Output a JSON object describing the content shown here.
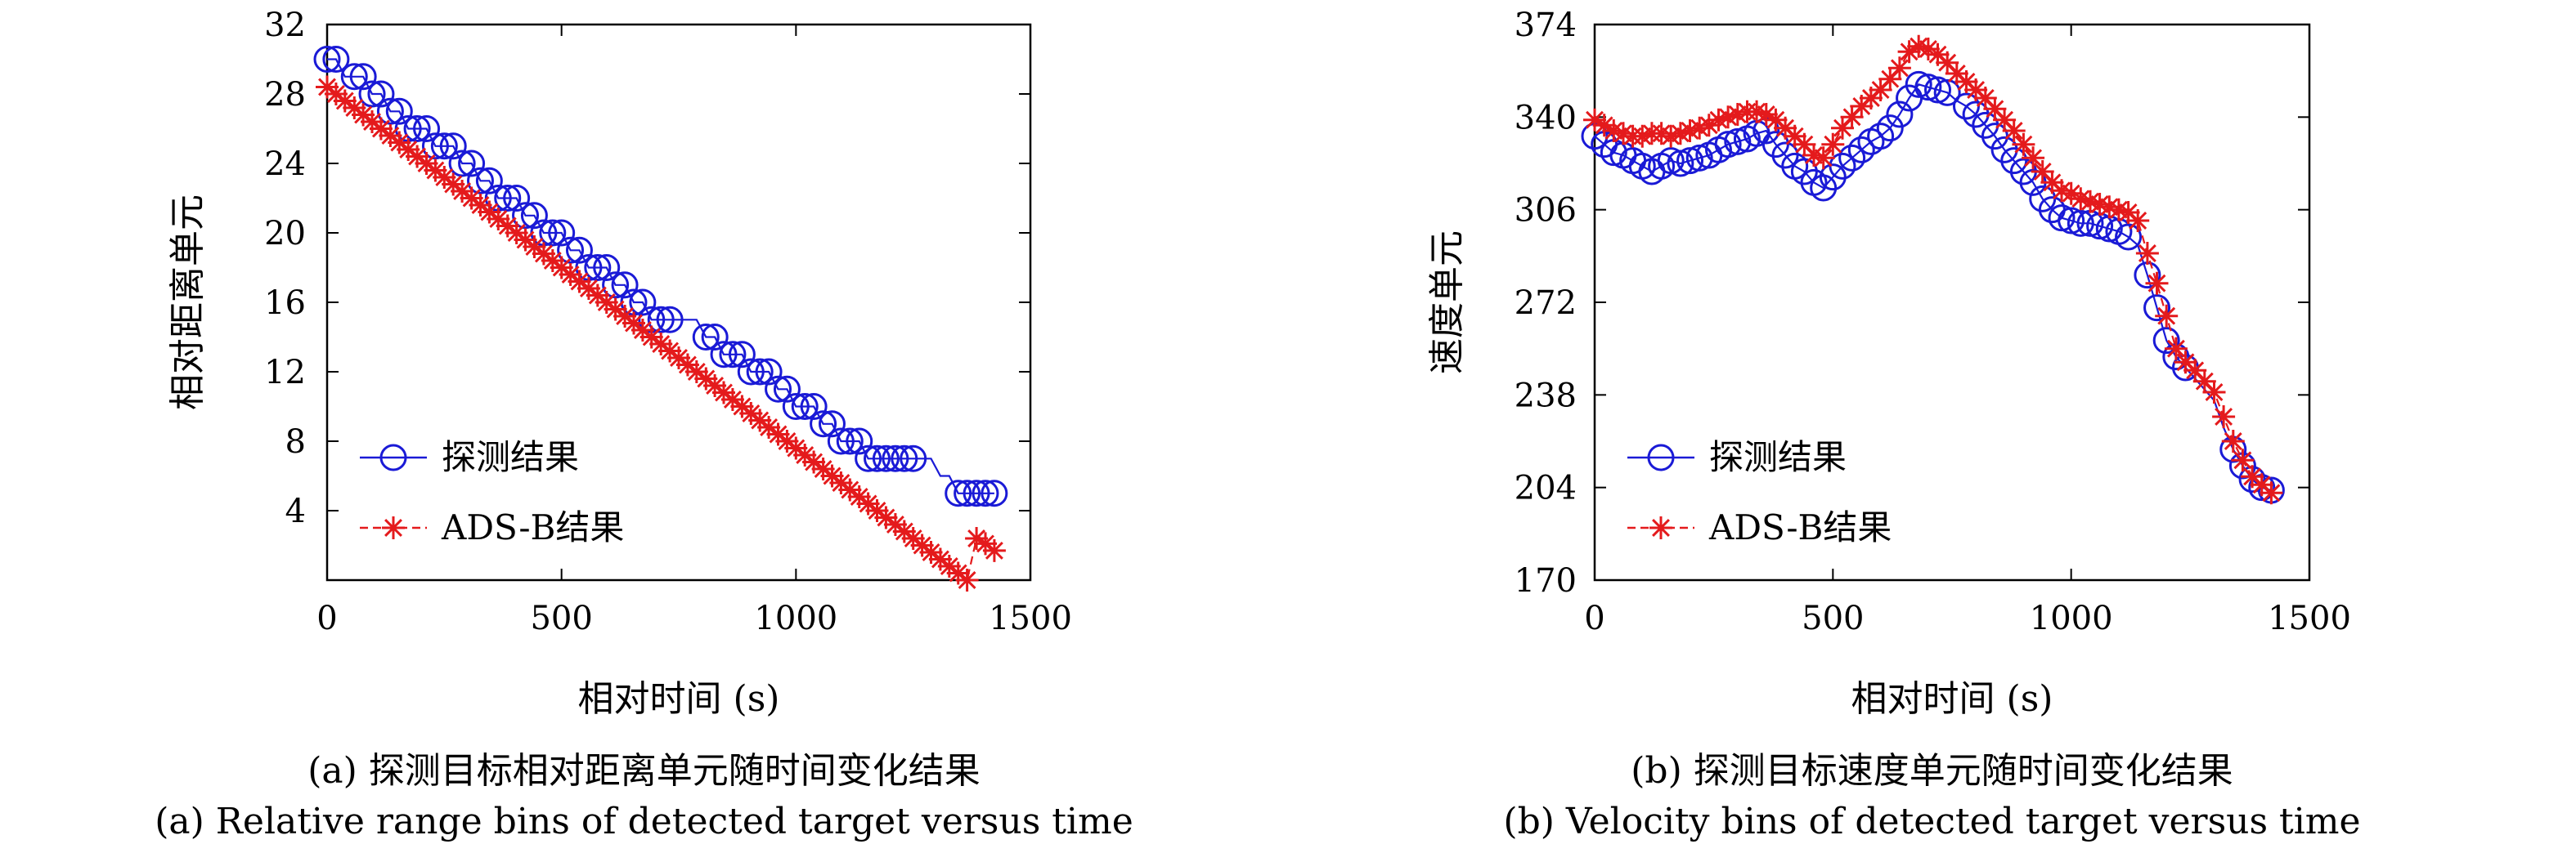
{
  "colors": {
    "detect": "#1a1ad6",
    "adsb": "#e41a1c",
    "axis": "#000000",
    "background": "#ffffff"
  },
  "chart_data": [
    {
      "type": "line",
      "caption_zh": "(a) 探测目标相对距离单元随时间变化结果",
      "caption_en": "(a) Relative range bins of detected target versus time",
      "xlabel": "相对时间 (s)",
      "ylabel": "相对距离单元",
      "xlim": [
        0,
        1500
      ],
      "ylim": [
        0,
        32
      ],
      "xticks": [
        0,
        500,
        1000,
        1500
      ],
      "yticks": [
        4,
        8,
        12,
        16,
        20,
        24,
        28,
        32
      ],
      "grid": false,
      "legend_position": "lower-left",
      "series": [
        {
          "name": "探测结果",
          "marker": "circle",
          "x": [
            0,
            19,
            38,
            58,
            77,
            96,
            115,
            135,
            154,
            173,
            192,
            212,
            231,
            250,
            269,
            288,
            308,
            327,
            346,
            365,
            385,
            404,
            423,
            442,
            462,
            481,
            500,
            519,
            538,
            558,
            577,
            596,
            615,
            635,
            654,
            673,
            692,
            712,
            731,
            750,
            769,
            788,
            808,
            827,
            846,
            865,
            885,
            904,
            923,
            942,
            962,
            981,
            1000,
            1019,
            1038,
            1058,
            1077,
            1096,
            1115,
            1135,
            1154,
            1173,
            1192,
            1212,
            1231,
            1250,
            1269,
            1288,
            1308,
            1327,
            1346,
            1365,
            1385,
            1404,
            1423
          ],
          "y": [
            30,
            30,
            29,
            29,
            29,
            28,
            28,
            27,
            27,
            26,
            26,
            26,
            25,
            25,
            25,
            24,
            24,
            23,
            23,
            22,
            22,
            22,
            21,
            21,
            20,
            20,
            20,
            19,
            19,
            18,
            18,
            18,
            17,
            17,
            16,
            16,
            15,
            15,
            15,
            15,
            15,
            15,
            14,
            14,
            13,
            13,
            13,
            12,
            12,
            12,
            11,
            11,
            10,
            10,
            10,
            9,
            9,
            8,
            8,
            8,
            7,
            7,
            7,
            7,
            7,
            7,
            7,
            7,
            6,
            6,
            5,
            5,
            5,
            5,
            5
          ],
          "x_markers": [
            0,
            19,
            58,
            77,
            96,
            115,
            135,
            154,
            173,
            192,
            212,
            231,
            250,
            269,
            288,
            308,
            327,
            346,
            365,
            385,
            404,
            423,
            442,
            462,
            481,
            500,
            519,
            538,
            558,
            577,
            596,
            615,
            635,
            654,
            673,
            692,
            712,
            731,
            808,
            827,
            846,
            865,
            885,
            904,
            923,
            942,
            962,
            981,
            1000,
            1019,
            1038,
            1058,
            1077,
            1096,
            1115,
            1135,
            1154,
            1173,
            1192,
            1212,
            1231,
            1250,
            1346,
            1365,
            1385,
            1404,
            1423
          ]
        },
        {
          "name": "ADS-B结果",
          "marker": "star",
          "x": [
            0,
            19,
            38,
            58,
            77,
            96,
            115,
            135,
            154,
            173,
            192,
            212,
            231,
            250,
            269,
            288,
            308,
            327,
            346,
            365,
            385,
            404,
            423,
            442,
            462,
            481,
            500,
            519,
            538,
            558,
            577,
            596,
            615,
            635,
            654,
            673,
            692,
            712,
            731,
            750,
            769,
            788,
            808,
            827,
            846,
            865,
            885,
            904,
            923,
            942,
            962,
            981,
            1000,
            1019,
            1038,
            1058,
            1077,
            1096,
            1115,
            1135,
            1154,
            1173,
            1192,
            1212,
            1231,
            1250,
            1269,
            1288,
            1308,
            1327,
            1346,
            1365,
            1385,
            1404,
            1423
          ],
          "y": [
            28.4,
            28.0,
            27.6,
            27.2,
            26.8,
            26.4,
            26.0,
            25.6,
            25.2,
            24.8,
            24.4,
            24.0,
            23.6,
            23.2,
            22.8,
            22.4,
            22.0,
            21.6,
            21.2,
            20.8,
            20.4,
            20.0,
            19.6,
            19.2,
            18.8,
            18.4,
            18.0,
            17.6,
            17.2,
            16.8,
            16.4,
            16.0,
            15.6,
            15.2,
            14.8,
            14.4,
            14.0,
            13.6,
            13.2,
            12.8,
            12.4,
            12.0,
            11.6,
            11.2,
            10.8,
            10.4,
            10.0,
            9.6,
            9.2,
            8.8,
            8.4,
            8.0,
            7.6,
            7.2,
            6.8,
            6.4,
            6.0,
            5.6,
            5.2,
            4.8,
            4.4,
            4.0,
            3.6,
            3.2,
            2.8,
            2.4,
            2.0,
            1.6,
            1.2,
            0.8,
            0.4,
            0.0,
            2.4,
            2.1,
            1.7
          ]
        }
      ]
    },
    {
      "type": "line",
      "caption_zh": "(b) 探测目标速度单元随时间变化结果",
      "caption_en": "(b) Velocity bins of detected target versus time",
      "xlabel": "相对时间 (s)",
      "ylabel": "速度单元",
      "xlim": [
        0,
        1500
      ],
      "ylim": [
        170,
        374
      ],
      "xticks": [
        0,
        500,
        1000,
        1500
      ],
      "yticks": [
        170,
        204,
        238,
        272,
        306,
        340,
        374
      ],
      "grid": false,
      "legend_position": "lower-left",
      "series": [
        {
          "name": "探测结果",
          "marker": "circle",
          "x": [
            0,
            20,
            40,
            60,
            80,
            100,
            120,
            140,
            160,
            180,
            200,
            220,
            240,
            260,
            280,
            300,
            320,
            340,
            360,
            380,
            400,
            420,
            440,
            460,
            480,
            500,
            520,
            540,
            560,
            580,
            600,
            620,
            640,
            660,
            680,
            700,
            720,
            740,
            760,
            780,
            800,
            820,
            840,
            860,
            880,
            900,
            920,
            940,
            960,
            980,
            1000,
            1020,
            1040,
            1060,
            1080,
            1100,
            1120,
            1140,
            1160,
            1180,
            1200,
            1220,
            1240,
            1260,
            1280,
            1300,
            1320,
            1340,
            1360,
            1380,
            1400,
            1420
          ],
          "y": [
            333,
            330,
            327,
            326,
            324,
            322,
            320,
            322,
            324,
            323,
            324,
            325,
            326,
            328,
            330,
            331,
            332,
            334,
            335,
            330,
            326,
            322,
            320,
            316,
            314,
            318,
            322,
            325,
            328,
            331,
            333,
            336,
            341,
            347,
            352,
            351,
            350,
            349,
            346,
            344,
            341,
            337,
            333,
            328,
            324,
            320,
            316,
            310,
            306,
            303,
            302,
            301,
            301,
            300,
            299,
            298,
            296,
            293,
            282,
            270,
            258,
            252,
            248,
            244,
            240,
            236,
            226,
            218,
            212,
            207,
            204,
            203
          ],
          "x_markers": [
            0,
            20,
            40,
            60,
            80,
            100,
            120,
            140,
            160,
            180,
            200,
            220,
            240,
            260,
            280,
            300,
            320,
            340,
            360,
            380,
            400,
            420,
            440,
            460,
            480,
            500,
            520,
            540,
            560,
            580,
            600,
            620,
            640,
            660,
            680,
            700,
            720,
            740,
            780,
            800,
            820,
            840,
            860,
            880,
            900,
            920,
            940,
            960,
            980,
            1000,
            1020,
            1040,
            1060,
            1080,
            1100,
            1120,
            1160,
            1180,
            1200,
            1220,
            1240,
            1340,
            1360,
            1380,
            1400,
            1420
          ]
        },
        {
          "name": "ADS-B结果",
          "marker": "star",
          "x": [
            0,
            20,
            40,
            60,
            80,
            100,
            120,
            140,
            160,
            180,
            200,
            220,
            240,
            260,
            280,
            300,
            320,
            340,
            360,
            380,
            400,
            420,
            440,
            460,
            480,
            500,
            520,
            540,
            560,
            580,
            600,
            620,
            640,
            660,
            680,
            700,
            720,
            740,
            760,
            780,
            800,
            820,
            840,
            860,
            880,
            900,
            920,
            940,
            960,
            980,
            1000,
            1020,
            1040,
            1060,
            1080,
            1100,
            1120,
            1140,
            1160,
            1180,
            1200,
            1220,
            1240,
            1260,
            1280,
            1300,
            1320,
            1340,
            1360,
            1380,
            1400,
            1420
          ],
          "y": [
            339,
            337,
            335,
            334,
            333,
            333,
            334,
            334,
            333,
            334,
            335,
            336,
            337,
            339,
            340,
            341,
            342,
            342,
            341,
            339,
            336,
            333,
            330,
            326,
            325,
            330,
            336,
            340,
            344,
            347,
            350,
            354,
            358,
            364,
            366,
            365,
            363,
            360,
            356,
            353,
            350,
            347,
            343,
            339,
            335,
            330,
            325,
            320,
            316,
            313,
            312,
            310,
            309,
            308,
            307,
            306,
            305,
            302,
            290,
            279,
            267,
            255,
            250,
            247,
            243,
            239,
            230,
            221,
            214,
            208,
            205,
            202
          ]
        }
      ]
    }
  ]
}
